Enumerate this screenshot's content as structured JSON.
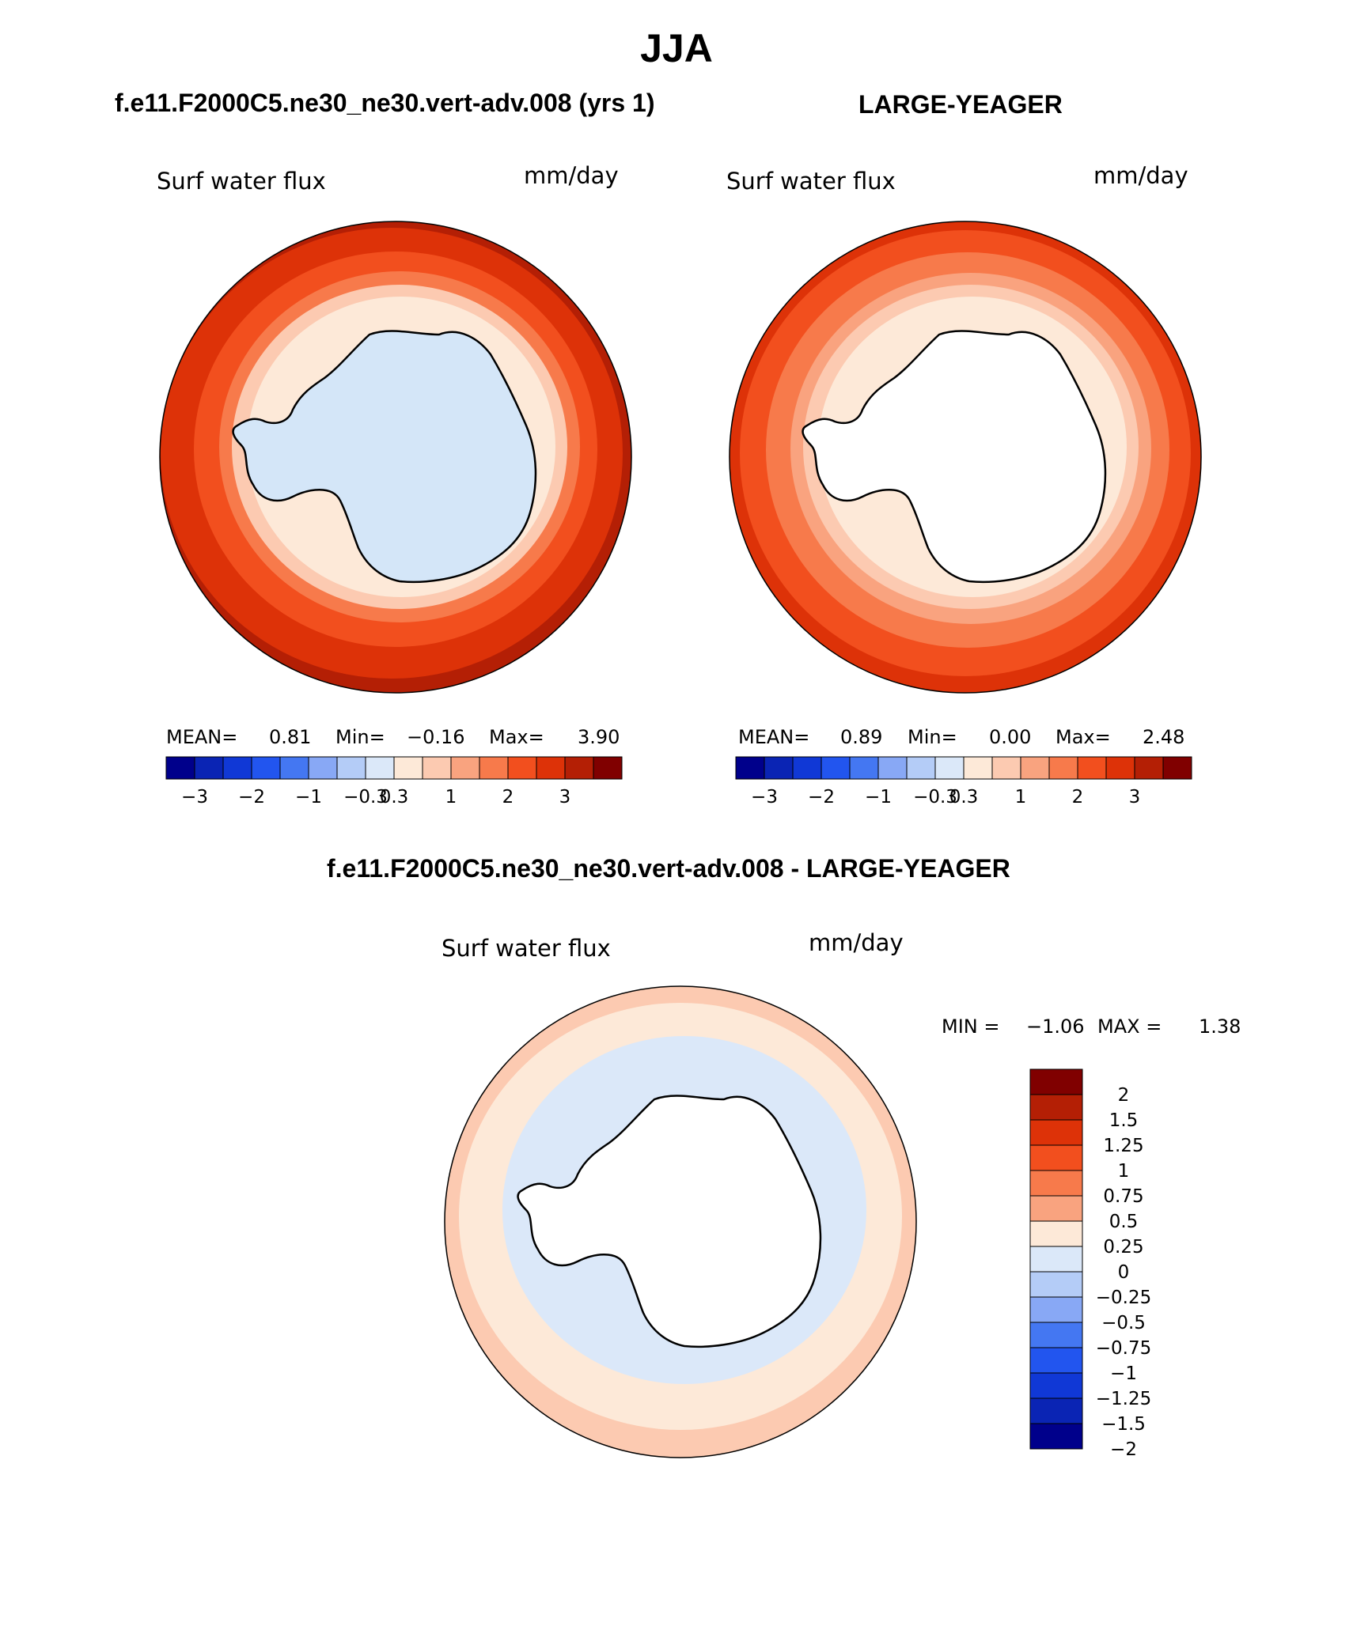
{
  "page_title": "JJA",
  "panels": [
    {
      "header": "f.e11.F2000C5.ne30_ne30.vert-adv.008 (yrs 1)",
      "variable": "Surf water flux",
      "units": "mm/day",
      "stats": {
        "mean_label": "MEAN=",
        "mean": "0.81",
        "min_label": "Min=",
        "min": "−0.16",
        "max_label": "Max=",
        "max": "3.90"
      }
    },
    {
      "header": "LARGE-YEAGER",
      "variable": "Surf water flux",
      "units": "mm/day",
      "stats": {
        "mean_label": "MEAN=",
        "mean": "0.89",
        "min_label": "Min=",
        "min": "0.00",
        "max_label": "Max=",
        "max": "2.48"
      }
    }
  ],
  "diff_panel": {
    "header": "f.e11.F2000C5.ne30_ne30.vert-adv.008 - LARGE-YEAGER",
    "variable": "Surf water flux",
    "units": "mm/day",
    "min_label": "MIN =",
    "min": "−1.06",
    "max_label": "MAX =",
    "max": "1.38"
  },
  "top_colorbar": {
    "colors": [
      "#00008b",
      "#0a24b4",
      "#1038d6",
      "#2255ef",
      "#4477f2",
      "#88a8f5",
      "#b4ccf7",
      "#dbe8f9",
      "#fde9d8",
      "#fccab1",
      "#f9a37f",
      "#f77a4b",
      "#f24f1e",
      "#dd3208",
      "#b41f05",
      "#800000"
    ],
    "tick_labels": [
      "−3",
      "−2",
      "−1",
      "−0.3",
      "0.3",
      "1",
      "2",
      "3"
    ]
  },
  "diff_colorbar": {
    "colors": [
      "#800000",
      "#b41f05",
      "#dd3208",
      "#f24f1e",
      "#f77a4b",
      "#f9a37f",
      "#fde9d8",
      "#dbe8f9",
      "#b4ccf7",
      "#88a8f5",
      "#4477f2",
      "#2255ef",
      "#1038d6",
      "#0a24b4",
      "#00008b"
    ],
    "tick_labels": [
      "2",
      "1.5",
      "1.25",
      "1",
      "0.75",
      "0.5",
      "0.25",
      "0",
      "−0.25",
      "−0.5",
      "−0.75",
      "−1",
      "−1.25",
      "−1.5",
      "−2"
    ]
  },
  "maps": {
    "left": {
      "rings": [
        "#b41f05",
        "#dd3208",
        "#f24f1e",
        "#f77a4b",
        "#fccab1",
        "#fde9d8"
      ],
      "land": "#d4e6f8"
    },
    "right": {
      "rings": [
        "#dd3208",
        "#f24f1e",
        "#f77a4b",
        "#f9a37f",
        "#fccab1",
        "#fde9d8"
      ],
      "land": "#ffffff"
    },
    "diff": {
      "rings": [
        "#fccab1",
        "#fde9d8",
        "#dbe8f9",
        "#fde9d8"
      ],
      "land": "#ffffff"
    }
  }
}
